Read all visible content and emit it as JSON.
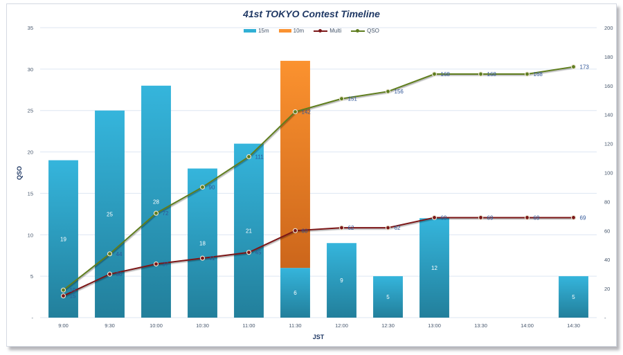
{
  "chart_data": {
    "type": "bar",
    "title": "41st TOKYO Contest  Timeline",
    "xlabel": "JST",
    "ylabel": "QSO",
    "y2label": "",
    "ylim": [
      0,
      35
    ],
    "y2lim": [
      0,
      200
    ],
    "yticks": [
      "-",
      "5",
      "10",
      "15",
      "20",
      "25",
      "30",
      "35"
    ],
    "y2ticks": [
      "-",
      "20",
      "40",
      "60",
      "80",
      "100",
      "120",
      "140",
      "160",
      "180",
      "200"
    ],
    "grid": true,
    "legend_position": "top-center",
    "categories": [
      "9:00",
      "9:30",
      "10:00",
      "10:30",
      "11:00",
      "11:30",
      "12:00",
      "12:30",
      "13:00",
      "13:30",
      "14:00",
      "14:30"
    ],
    "series": [
      {
        "name": "15m",
        "type": "stacked-bar",
        "axis": "left",
        "color": "#31b0d5",
        "color_dark": "#2383a0",
        "values": [
          19,
          25,
          28,
          18,
          21,
          6,
          9,
          5,
          12,
          0,
          0,
          5
        ],
        "labels": [
          "19",
          "25",
          "28",
          "18",
          "21",
          "6",
          "9",
          "5",
          "12",
          "",
          "",
          "5"
        ]
      },
      {
        "name": "10m",
        "type": "stacked-bar",
        "axis": "left",
        "color": "#fa9231",
        "color_dark": "#cf6a1d",
        "values": [
          0,
          0,
          0,
          0,
          0,
          25,
          0,
          0,
          0,
          0,
          0,
          0
        ],
        "labels": [
          "",
          "",
          "",
          "",
          "",
          "",
          "",
          "",
          "",
          "",
          "",
          ""
        ]
      },
      {
        "name": "Multi",
        "type": "line",
        "axis": "right",
        "color": "#7b1618",
        "values": [
          15,
          30,
          37,
          41,
          45,
          60,
          62,
          62,
          69,
          69,
          69,
          69
        ]
      },
      {
        "name": "QSO",
        "type": "line",
        "axis": "right",
        "color": "#5e7d1f",
        "values": [
          19,
          44,
          72,
          90,
          111,
          142,
          151,
          156,
          168,
          168,
          168,
          173
        ]
      }
    ]
  }
}
